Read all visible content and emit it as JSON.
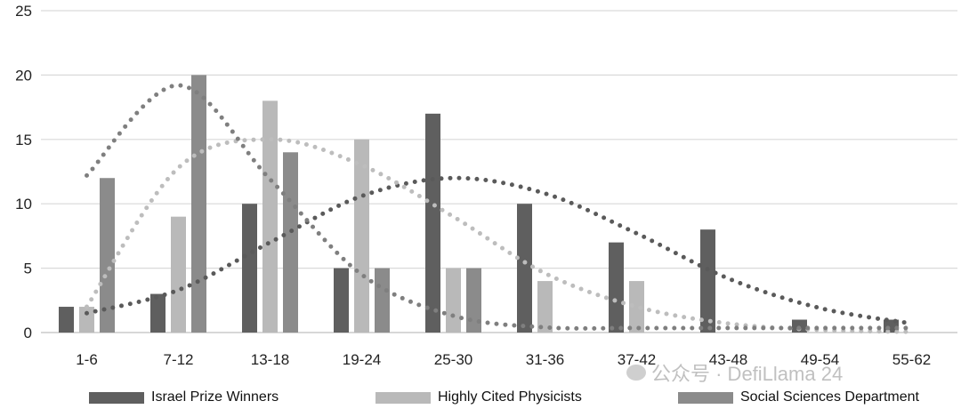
{
  "chart_data": {
    "type": "bar",
    "categories": [
      "1-6",
      "7-12",
      "13-18",
      "19-24",
      "25-30",
      "31-36",
      "37-42",
      "43-48",
      "49-54",
      "55-62"
    ],
    "series": [
      {
        "name": "Israel Prize Winners",
        "values": [
          2,
          3,
          10,
          5,
          17,
          10,
          7,
          8,
          1,
          1
        ],
        "color": "#5f5f5f"
      },
      {
        "name": "Highly Cited Physicists",
        "values": [
          2,
          9,
          18,
          15,
          5,
          4,
          4,
          0,
          0,
          0
        ],
        "color": "#b9b9b9"
      },
      {
        "name": "Social Sciences Department",
        "values": [
          12,
          20,
          14,
          5,
          5,
          0,
          0,
          0,
          0,
          0
        ],
        "color": "#8b8b8b"
      }
    ],
    "trendlines": [
      {
        "series": "Israel Prize Winners",
        "color": "#5a5a5a",
        "values": [
          1.5,
          3.3,
          7.0,
          10.6,
          12.0,
          10.8,
          7.7,
          4.2,
          1.9,
          0.7
        ]
      },
      {
        "series": "Highly Cited Physicists",
        "color": "#bdbdbd",
        "values": [
          2.0,
          12.8,
          15.0,
          13.0,
          9.0,
          4.6,
          2.0,
          0.7,
          0.2,
          0.05
        ]
      },
      {
        "series": "Social Sciences Department",
        "color": "#7f7f7f",
        "values": [
          12.2,
          19.2,
          11.9,
          4.5,
          1.3,
          0.4,
          0.35,
          0.35,
          0.35,
          0.35
        ]
      }
    ],
    "ylim": [
      0,
      25
    ],
    "yticks": [
      "0",
      "5",
      "10",
      "15",
      "20",
      "25"
    ],
    "grid": true,
    "legend_position": "bottom"
  },
  "legend": {
    "item1": "Israel Prize Winners",
    "item2": "Highly Cited Physicists",
    "item3": "Social Sciences Department"
  },
  "watermark": {
    "text": "公众号 · DefiLlama 24"
  }
}
